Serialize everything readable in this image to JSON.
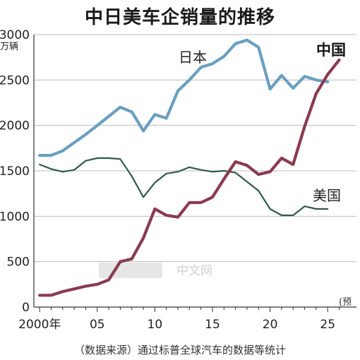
{
  "chart_data": {
    "type": "line",
    "title": "中日美车企销量的推移",
    "unit": "万辆",
    "source": "（数据来源）通过标普全球汽车的数据等统计",
    "projection_note": "(预",
    "watermark": "中文网",
    "ylim": [
      0,
      3000
    ],
    "xlim": [
      1999.5,
      2027.5
    ],
    "y_ticks": [
      {
        "v": 0,
        "label": "0"
      },
      {
        "v": 500,
        "label": "500"
      },
      {
        "v": 1000,
        "label": "1000"
      },
      {
        "v": 1500,
        "label": "1500"
      },
      {
        "v": 2000,
        "label": "2000"
      },
      {
        "v": 2500,
        "label": "2500"
      },
      {
        "v": 3000,
        "label": "3000"
      }
    ],
    "x_ticks": [
      {
        "v": 2000,
        "label": "2000年"
      },
      {
        "v": 2005,
        "label": "05"
      },
      {
        "v": 2010,
        "label": "10"
      },
      {
        "v": 2015,
        "label": "15"
      },
      {
        "v": 2020,
        "label": "20"
      },
      {
        "v": 2025,
        "label": "25"
      }
    ],
    "x": [
      2000,
      2001,
      2002,
      2003,
      2004,
      2005,
      2006,
      2007,
      2008,
      2009,
      2010,
      2011,
      2012,
      2013,
      2014,
      2015,
      2016,
      2017,
      2018,
      2019,
      2020,
      2021,
      2022,
      2023,
      2024,
      2025,
      2026
    ],
    "series": [
      {
        "name": "日本",
        "color": "#6a9fc0",
        "values": [
          1670,
          1670,
          1720,
          1810,
          1900,
          2000,
          2100,
          2200,
          2150,
          1940,
          2120,
          2080,
          2380,
          2500,
          2640,
          2680,
          2760,
          2900,
          2940,
          2860,
          2400,
          2550,
          2410,
          2540,
          2500,
          2480,
          null
        ]
      },
      {
        "name": "美国",
        "color": "#2f5a45",
        "values": [
          1570,
          1520,
          1490,
          1510,
          1610,
          1640,
          1640,
          1630,
          1440,
          1210,
          1370,
          1470,
          1490,
          1540,
          1510,
          1490,
          1500,
          1480,
          1380,
          1280,
          1080,
          1010,
          1010,
          1110,
          1080,
          1080,
          null
        ]
      },
      {
        "name": "中国",
        "color": "#8b3a4e",
        "values": [
          130,
          130,
          170,
          200,
          230,
          250,
          300,
          500,
          530,
          760,
          1080,
          1010,
          990,
          1150,
          1150,
          1210,
          1410,
          1600,
          1560,
          1460,
          1490,
          1640,
          1570,
          1990,
          2350,
          2560,
          2720
        ]
      }
    ]
  }
}
